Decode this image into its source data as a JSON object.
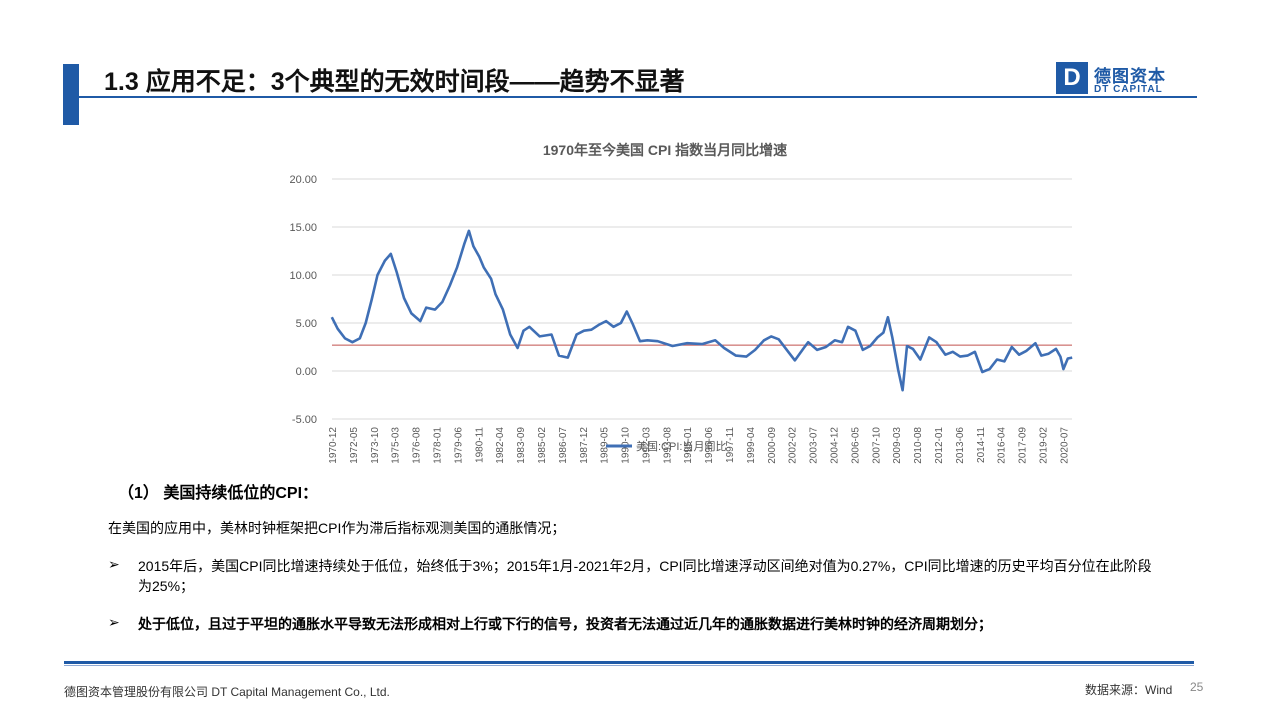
{
  "header": {
    "title": "1.3 应用不足：3个典型的无效时间段——趋势不显著",
    "accent_color": "#1f5aa6"
  },
  "logo": {
    "mark": "D",
    "name_cn": "德图资本",
    "name_en": "DT CAPITAL"
  },
  "chart_data": {
    "type": "line",
    "title": "1970年至今美国 CPI 指数当月同比增速",
    "ylim": [
      -5,
      20
    ],
    "yticks": [
      "20.00",
      "15.00",
      "10.00",
      "5.00",
      "0.00",
      "-5.00"
    ],
    "ytick_values": [
      20,
      15,
      10,
      5,
      0,
      -5
    ],
    "xlim": [
      "1970-12",
      "2021-02"
    ],
    "xticks": [
      "1970-12",
      "1972-05",
      "1973-10",
      "1975-03",
      "1976-08",
      "1978-01",
      "1979-06",
      "1980-11",
      "1982-04",
      "1983-09",
      "1985-02",
      "1986-07",
      "1987-12",
      "1989-05",
      "1990-10",
      "1992-03",
      "1993-08",
      "1995-01",
      "1996-06",
      "1997-11",
      "1999-04",
      "2000-09",
      "2002-02",
      "2003-07",
      "2004-12",
      "2006-05",
      "2007-10",
      "2009-03",
      "2010-08",
      "2012-01",
      "2013-06",
      "2014-11",
      "2016-04",
      "2017-09",
      "2019-02",
      "2020-07"
    ],
    "reference_line": 2.7,
    "grid": "horizontal",
    "legend_position": "bottom",
    "series": [
      {
        "name": "美国:CPI:当月同比",
        "color": "#3f6fb5",
        "x": [
          1970.9,
          1971.3,
          1971.8,
          1972.3,
          1972.8,
          1973.2,
          1973.6,
          1974.0,
          1974.5,
          1974.9,
          1975.3,
          1975.8,
          1976.3,
          1976.9,
          1977.3,
          1977.9,
          1978.4,
          1978.9,
          1979.4,
          1979.9,
          1980.2,
          1980.5,
          1980.9,
          1981.2,
          1981.7,
          1982.0,
          1982.5,
          1983.0,
          1983.5,
          1983.9,
          1984.3,
          1985.0,
          1985.8,
          1986.3,
          1986.9,
          1987.5,
          1988.0,
          1988.5,
          1989.0,
          1989.5,
          1990.0,
          1990.5,
          1990.9,
          1991.3,
          1991.8,
          1992.3,
          1993.0,
          1994.0,
          1995.0,
          1996.0,
          1996.9,
          1997.5,
          1998.3,
          1999.0,
          1999.6,
          2000.2,
          2000.7,
          2001.2,
          2001.9,
          2002.3,
          2002.9,
          2003.2,
          2003.8,
          2004.4,
          2005.0,
          2005.5,
          2005.9,
          2006.4,
          2006.9,
          2007.4,
          2007.9,
          2008.3,
          2008.6,
          2008.9,
          2009.3,
          2009.6,
          2009.9,
          2010.3,
          2010.8,
          2011.4,
          2011.9,
          2012.5,
          2013.0,
          2013.5,
          2014.0,
          2014.5,
          2015.0,
          2015.5,
          2016.0,
          2016.5,
          2017.0,
          2017.5,
          2018.0,
          2018.6,
          2019.0,
          2019.5,
          2020.0,
          2020.3,
          2020.5,
          2020.8,
          2021.1
        ],
        "values": [
          5.6,
          4.4,
          3.4,
          3.0,
          3.4,
          5.0,
          7.4,
          10.0,
          11.5,
          12.2,
          10.3,
          7.6,
          6.0,
          5.2,
          6.6,
          6.4,
          7.2,
          8.9,
          10.8,
          13.3,
          14.6,
          13.0,
          11.9,
          10.8,
          9.6,
          8.0,
          6.4,
          3.8,
          2.4,
          4.2,
          4.6,
          3.6,
          3.8,
          1.6,
          1.4,
          3.8,
          4.2,
          4.3,
          4.8,
          5.2,
          4.6,
          5.0,
          6.2,
          4.9,
          3.1,
          3.2,
          3.1,
          2.6,
          2.9,
          2.8,
          3.2,
          2.4,
          1.6,
          1.5,
          2.2,
          3.2,
          3.6,
          3.3,
          1.9,
          1.1,
          2.4,
          3.0,
          2.2,
          2.5,
          3.2,
          3.0,
          4.6,
          4.2,
          2.2,
          2.6,
          3.5,
          4.0,
          5.6,
          3.5,
          0.1,
          -2.0,
          2.6,
          2.3,
          1.2,
          3.5,
          3.0,
          1.7,
          2.0,
          1.5,
          1.6,
          2.0,
          -0.1,
          0.2,
          1.2,
          1.0,
          2.5,
          1.7,
          2.1,
          2.9,
          1.6,
          1.8,
          2.3,
          1.5,
          0.2,
          1.3,
          1.4
        ]
      }
    ]
  },
  "section": {
    "heading": "（1） 美国持续低位的CPI：",
    "intro": "在美国的应用中，美林时钟框架把CPI作为滞后指标观测美国的通胀情况；",
    "bullets": [
      {
        "mark": "➢",
        "text": "2015年后，美国CPI同比增速持续处于低位，始终低于3%；2015年1月-2021年2月，CPI同比增速浮动区间绝对值为0.27%，CPI同比增速的历史平均百分位在此阶段为25%；"
      },
      {
        "mark": "➢",
        "text": "处于低位，且过于平坦的通胀水平导致无法形成相对上行或下行的信号，投资者无法通过近几年的通胀数据进行美林时钟的经济周期划分；"
      }
    ]
  },
  "footer": {
    "company": "德图资本管理股份有限公司  DT Capital  Management  Co., Ltd.",
    "source": "数据来源：Wind",
    "page_number": "25"
  }
}
